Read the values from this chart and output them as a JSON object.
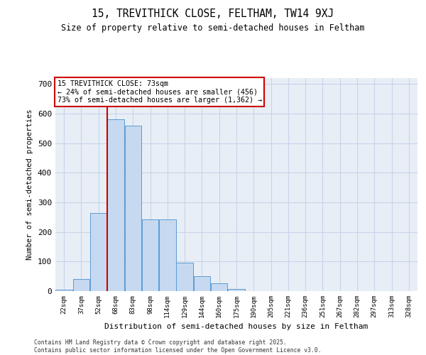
{
  "title_line1": "15, TREVITHICK CLOSE, FELTHAM, TW14 9XJ",
  "title_line2": "Size of property relative to semi-detached houses in Feltham",
  "xlabel": "Distribution of semi-detached houses by size in Feltham",
  "ylabel": "Number of semi-detached properties",
  "categories": [
    "22sqm",
    "37sqm",
    "52sqm",
    "68sqm",
    "83sqm",
    "98sqm",
    "114sqm",
    "129sqm",
    "144sqm",
    "160sqm",
    "175sqm",
    "190sqm",
    "205sqm",
    "221sqm",
    "236sqm",
    "251sqm",
    "267sqm",
    "282sqm",
    "297sqm",
    "313sqm",
    "328sqm"
  ],
  "values": [
    5,
    40,
    265,
    580,
    560,
    243,
    243,
    95,
    50,
    27,
    7,
    0,
    0,
    0,
    0,
    0,
    0,
    0,
    0,
    0,
    0
  ],
  "bar_color": "#c6d9f0",
  "bar_edge_color": "#5b9bd5",
  "grid_color": "#c8d4e8",
  "background_color": "#e8eef6",
  "vline_x": 2.5,
  "vline_color": "#cc0000",
  "annotation_text": "15 TREVITHICK CLOSE: 73sqm\n← 24% of semi-detached houses are smaller (456)\n73% of semi-detached houses are larger (1,362) →",
  "annotation_box_color": "#cc0000",
  "footer_line1": "Contains HM Land Registry data © Crown copyright and database right 2025.",
  "footer_line2": "Contains public sector information licensed under the Open Government Licence v3.0.",
  "ylim": [
    0,
    720
  ],
  "yticks": [
    0,
    100,
    200,
    300,
    400,
    500,
    600,
    700
  ]
}
